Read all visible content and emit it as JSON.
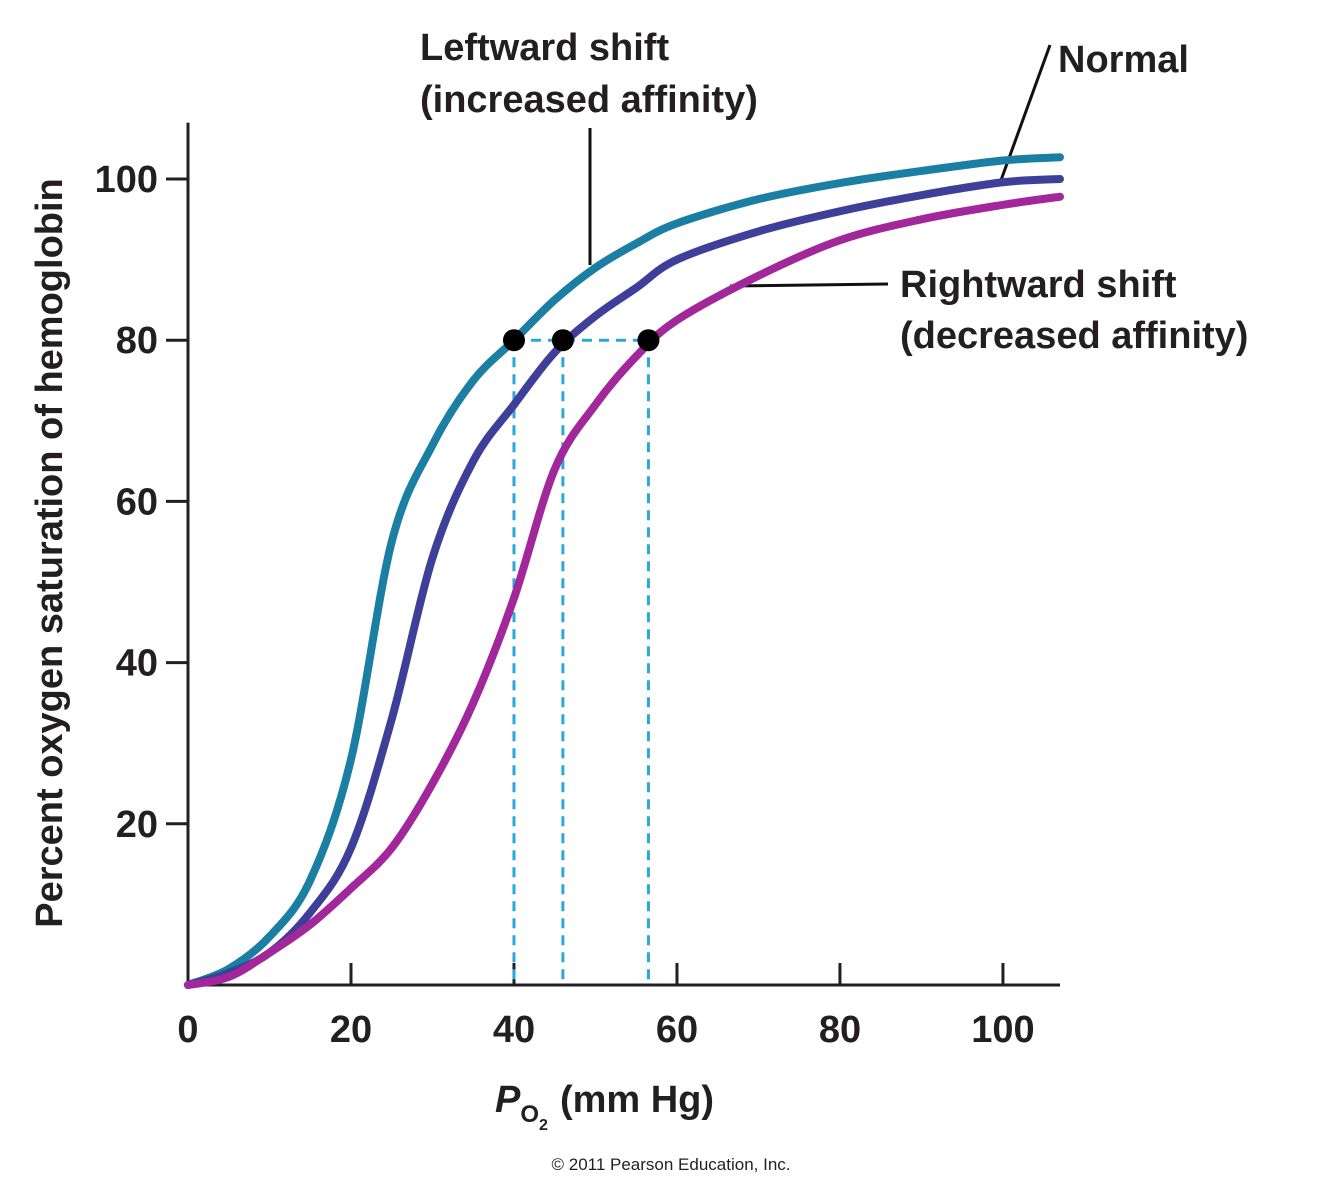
{
  "chart_data": {
    "type": "line",
    "ylabel": "Percent oxygen saturation of hemoglobin",
    "xlabel": {
      "italic": "P",
      "sub": "O",
      "subsub": "2",
      "rest": "(mm Hg)"
    },
    "x": [
      0,
      5,
      10,
      15,
      20,
      25,
      30,
      35,
      40,
      45,
      50,
      55,
      60,
      70,
      80,
      90,
      100,
      107
    ],
    "series": [
      {
        "name": "Leftward shift",
        "note": "(increased affinity)",
        "color": "#1b7fa3",
        "values": [
          0,
          2,
          6,
          13,
          28,
          55,
          67,
          75,
          80,
          85,
          89,
          92,
          94.5,
          97.5,
          99.5,
          101,
          102.3,
          102.7
        ]
      },
      {
        "name": "Normal",
        "color": "#3d3f98",
        "values": [
          0,
          1.5,
          4,
          9,
          17,
          33,
          53,
          65,
          72,
          78.5,
          83,
          86.5,
          90,
          93.5,
          96,
          98,
          99.6,
          100
        ]
      },
      {
        "name": "Rightward shift",
        "note": "(decreased affinity)",
        "color": "#a1279b",
        "values": [
          0,
          1,
          4,
          7.5,
          12,
          17,
          25,
          35,
          48,
          64,
          72,
          78,
          82.5,
          88,
          92.4,
          95,
          96.8,
          97.8
        ]
      }
    ],
    "markers": {
      "color": "#29a9d9",
      "x": [
        40,
        46,
        56.5
      ],
      "y": [
        80,
        80,
        80
      ]
    },
    "xlim": [
      0,
      107
    ],
    "ylim": [
      0,
      107
    ],
    "xticks": [
      0,
      20,
      40,
      60,
      80,
      100
    ],
    "yticks": [
      20,
      40,
      60,
      80,
      100
    ],
    "credit": "© 2011 Pearson Education, Inc."
  }
}
